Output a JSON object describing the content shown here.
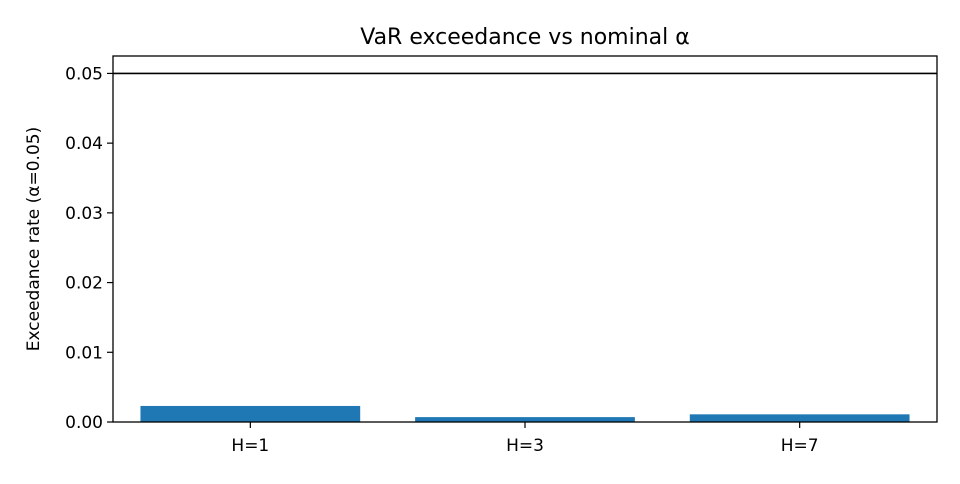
{
  "chart_data": {
    "type": "bar",
    "title": "VaR exceedance vs nominal α",
    "xlabel": "",
    "ylabel": "Exceedance rate (α=0.05)",
    "categories": [
      "H=1",
      "H=3",
      "H=7"
    ],
    "values": [
      0.0023,
      0.0007,
      0.0011
    ],
    "ylim": [
      0,
      0.0525
    ],
    "yticks": [
      0.0,
      0.01,
      0.02,
      0.03,
      0.04,
      0.05
    ],
    "ytick_labels": [
      "0.00",
      "0.01",
      "0.02",
      "0.03",
      "0.04",
      "0.05"
    ],
    "reference_line": {
      "y": 0.05,
      "color": "#000000"
    },
    "grid": false,
    "legend": "none",
    "bar_color": "#1f77b4"
  }
}
